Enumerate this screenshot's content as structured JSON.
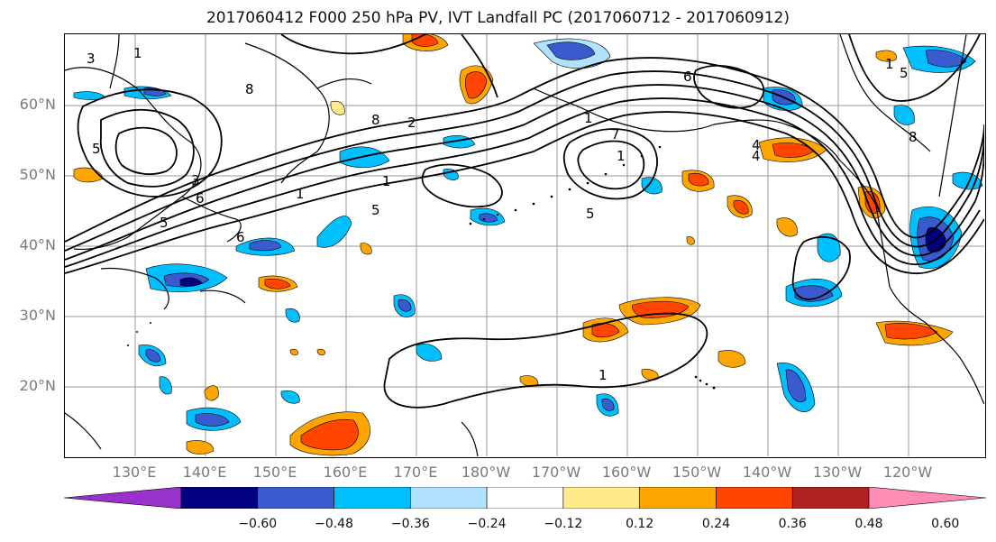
{
  "title": "2017060412 F000 250 hPa PV, IVT Landfall PC (2017060712 - 2017060912)",
  "map": {
    "lat_labels": [
      "60°N",
      "50°N",
      "40°N",
      "30°N",
      "20°N"
    ],
    "lon_labels": [
      "130°E",
      "140°E",
      "150°E",
      "160°E",
      "170°E",
      "180°W",
      "170°W",
      "160°W",
      "150°W",
      "140°W",
      "130°W",
      "120°W"
    ],
    "contour_labels": [
      "3",
      "1",
      "8",
      "8",
      "2",
      "1",
      "5",
      "1",
      "6",
      "6",
      "5",
      "3",
      "5",
      "4",
      "7",
      "1",
      "1",
      "5",
      "6",
      "4",
      "8",
      "1",
      "1",
      "5"
    ],
    "grid": true
  },
  "colorbar": {
    "colors": [
      "#9932CC",
      "#000080",
      "#3A5BCD",
      "#00BFFF",
      "#B0E2FF",
      "#FFFFFF",
      "#FFEB8A",
      "#FFA500",
      "#FF4500",
      "#B22222",
      "#FF8CB5"
    ],
    "tick_labels": [
      "−0.60",
      "−0.48",
      "−0.36",
      "−0.24",
      "−0.12",
      "0.12",
      "0.24",
      "0.36",
      "0.48",
      "0.60"
    ]
  },
  "shading_colors": {
    "neg_light": "#B0E2FF",
    "neg_mid": "#00BFFF",
    "neg_strong": "#3A5BCD",
    "neg_max": "#000080",
    "pos_light": "#FFEB8A",
    "pos_mid": "#FFA500",
    "pos_strong": "#FF4500",
    "pos_max": "#B22222"
  }
}
